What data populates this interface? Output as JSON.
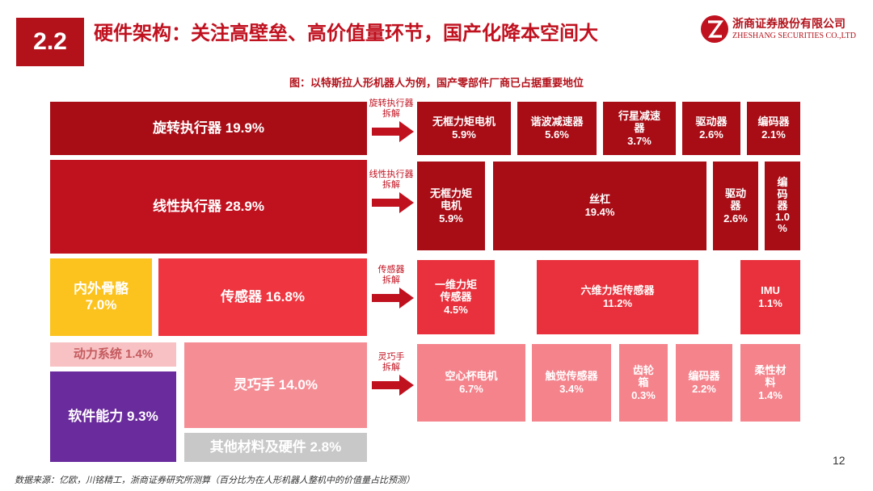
{
  "header": {
    "section": "2.2",
    "title": "硬件架构：关注高壁垒、高价值量环节，国产化降本空间大",
    "logo_cn": "浙商证券股份有限公司",
    "logo_en": "ZHESHANG SECURITIES CO.,LTD"
  },
  "figure": {
    "caption": "图：以特斯拉人形机器人为例，国产零部件厂商已占据重要地位"
  },
  "blocks": {
    "rotary": "旋转执行器  19.9%",
    "linear": "线性执行器  28.9%",
    "skeleton_name": "内外骨骼",
    "skeleton_pct": "7.0%",
    "sensor": "传感器  16.8%",
    "power": "动力系统  1.4%",
    "dexhand": "灵巧手  14.0%",
    "software": "软件能力  9.3%",
    "other": "其他材料及硬件  2.8%"
  },
  "arrows": {
    "rotary": [
      "旋转执行器",
      "拆解"
    ],
    "linear": [
      "线性执行器",
      "拆解"
    ],
    "sensor": [
      "传感器",
      "拆解"
    ],
    "dexhand": [
      "灵巧手",
      "拆解"
    ]
  },
  "rotary_parts": [
    {
      "lines": [
        "无框力矩电机"
      ],
      "pct": "5.9%"
    },
    {
      "lines": [
        "谐波减速器"
      ],
      "pct": "5.6%"
    },
    {
      "lines": [
        "行星减速",
        "器"
      ],
      "pct": "3.7%"
    },
    {
      "lines": [
        "驱动器"
      ],
      "pct": "2.6%"
    },
    {
      "lines": [
        "编码器"
      ],
      "pct": "2.1%"
    }
  ],
  "linear_parts": [
    {
      "lines": [
        "无框力矩",
        "电机"
      ],
      "pct": "5.9%"
    },
    {
      "lines": [
        "丝杠"
      ],
      "pct": "19.4%"
    },
    {
      "lines": [
        "驱动",
        "器"
      ],
      "pct": "2.6%"
    },
    {
      "lines": [
        "编",
        "码",
        "器",
        "1.0",
        "%"
      ],
      "pct": ""
    }
  ],
  "sensor_parts": [
    {
      "lines": [
        "一维力矩",
        "传感器"
      ],
      "pct": "4.5%"
    },
    {
      "lines": [
        "六维力矩传感器"
      ],
      "pct": "11.2%"
    },
    {
      "lines": [
        "IMU"
      ],
      "pct": "1.1%"
    }
  ],
  "dexhand_parts": [
    {
      "lines": [
        "空心杯电机"
      ],
      "pct": "6.7%"
    },
    {
      "lines": [
        "触觉传感器"
      ],
      "pct": "3.4%"
    },
    {
      "lines": [
        "齿轮",
        "箱"
      ],
      "pct": "0.3%"
    },
    {
      "lines": [
        "编码器"
      ],
      "pct": "2.2%"
    },
    {
      "lines": [
        "柔性材",
        "料"
      ],
      "pct": "1.4%"
    }
  ],
  "footer": {
    "source": "数据来源：亿欧，川铭精工，浙商证券研究所测算（百分比为在人形机器人整机中的价值量占比预测）",
    "page": "12"
  }
}
